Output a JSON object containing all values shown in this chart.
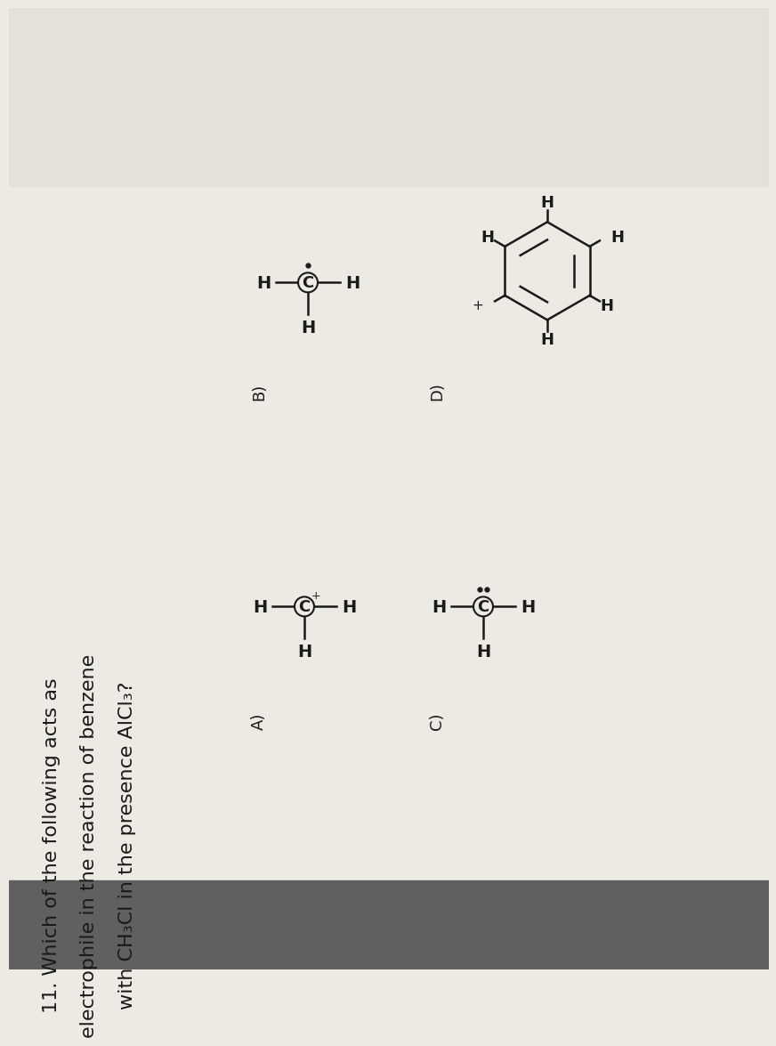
{
  "bg_color": "#ede9e3",
  "bg_top": "#d8d3cc",
  "bottom_bar_color": "#606060",
  "text_color": "#1a1a1a",
  "question_line1": "11. Which of the following acts as",
  "question_line2": "electrophile in the reaction of benzene",
  "question_line3": "with CH₃Cl in the presence AlCl₃?",
  "font_size_question": 16,
  "font_size_label": 13,
  "font_size_struct": 15,
  "font_size_H": 14,
  "font_size_C": 13
}
